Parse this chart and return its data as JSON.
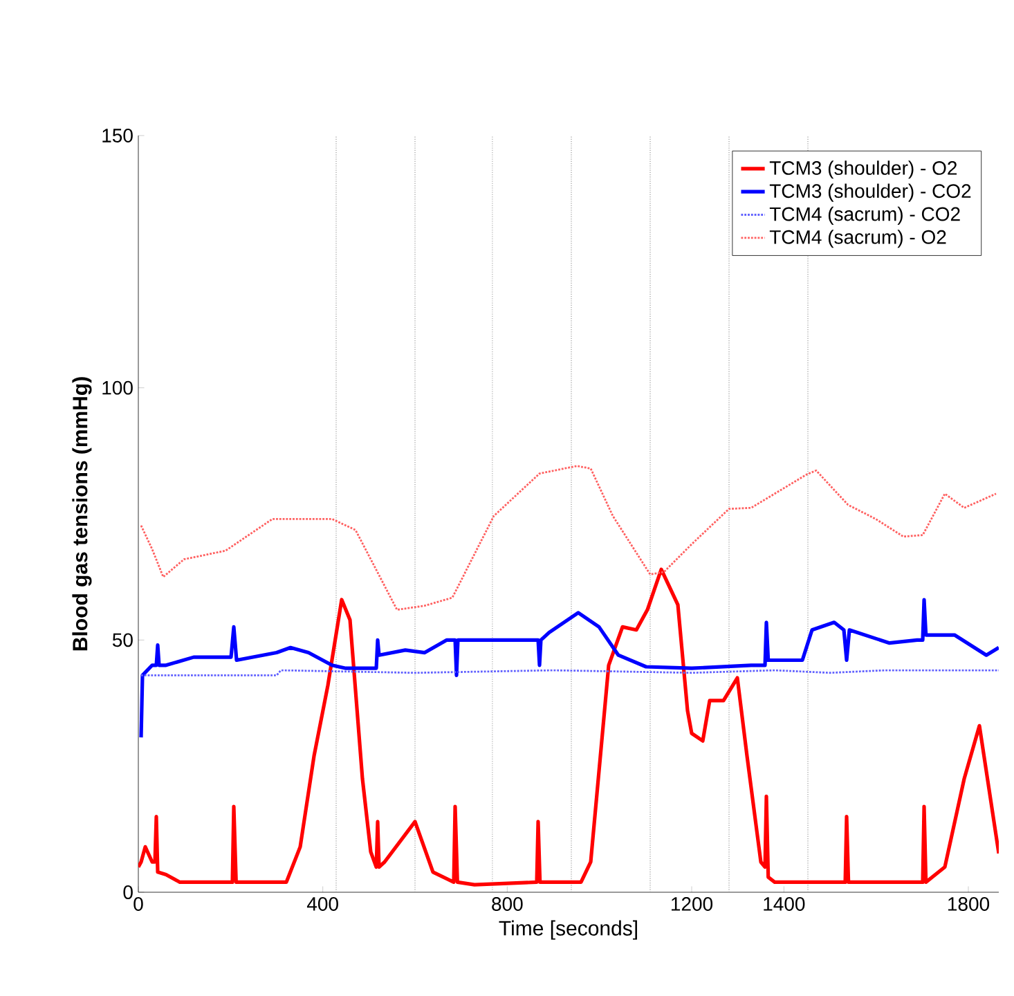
{
  "chart_data": {
    "type": "line",
    "xlabel": "Time [seconds]",
    "ylabel": "Blood gas tensions (mmHg)",
    "xlim": [
      0,
      1866
    ],
    "ylim": [
      0,
      150
    ],
    "xticks": [
      0,
      400,
      800,
      1200,
      1400,
      1800
    ],
    "yticks": [
      0,
      50,
      100,
      150
    ],
    "legend": "top right",
    "grid": false,
    "series": [
      {
        "name": "TCM3 (shoulder) - O2",
        "color": "#ff0000",
        "line_style": "solid",
        "x": [
          0,
          6,
          15,
          30,
          36,
          39,
          42,
          60,
          90,
          204,
          207,
          212,
          321,
          351,
          381,
          411,
          441,
          459,
          486,
          504,
          516,
          519,
          522,
          534,
          600,
          639,
          684,
          687,
          692,
          729,
          864,
          867,
          871,
          960,
          981,
          1020,
          1050,
          1080,
          1104,
          1134,
          1170,
          1191,
          1200,
          1224,
          1239,
          1269,
          1299,
          1320,
          1350,
          1359,
          1362,
          1366,
          1380,
          1533,
          1536,
          1540,
          1701,
          1704,
          1708,
          1749,
          1791,
          1824,
          1866
        ],
        "values": [
          5,
          6,
          9,
          6,
          6,
          15,
          4,
          3.5,
          2,
          2,
          17,
          2,
          2,
          9,
          27,
          41,
          58,
          54,
          22.5,
          8,
          5,
          14,
          5,
          6,
          14,
          4,
          2,
          17,
          2,
          1.5,
          2,
          14,
          2,
          2,
          6,
          45,
          52.6,
          52,
          56,
          64,
          57,
          36,
          31.5,
          30,
          38,
          38,
          42.5,
          27,
          6,
          5,
          19,
          3,
          2,
          2,
          15,
          2,
          2,
          17,
          2,
          5,
          22.5,
          33,
          7.7
        ]
      },
      {
        "name": "TCM3 (shoulder) - CO2",
        "color": "#0000ff",
        "line_style": "solid",
        "x": [
          6,
          9,
          30,
          39,
          42,
          45,
          60,
          120,
          201,
          207,
          213,
          300,
          330,
          369,
          420,
          450,
          501,
          516,
          519,
          522,
          579,
          621,
          669,
          687,
          690,
          693,
          771,
          819,
          867,
          870,
          873,
          891,
          954,
          999,
          1041,
          1101,
          1200,
          1329,
          1359,
          1362,
          1366,
          1440,
          1461,
          1509,
          1530,
          1536,
          1542,
          1629,
          1689,
          1701,
          1704,
          1708,
          1770,
          1839,
          1866
        ],
        "values": [
          30.7,
          43,
          45,
          45,
          49,
          45,
          45,
          46.6,
          46.6,
          52.6,
          46,
          47.5,
          48.5,
          47.5,
          45,
          44.4,
          44.4,
          44.4,
          50,
          47,
          48,
          47.5,
          50,
          50,
          43,
          50,
          50,
          50,
          50,
          45,
          50,
          51.5,
          55.4,
          52.6,
          47,
          44.7,
          44.4,
          45,
          45,
          53.5,
          46,
          46,
          52,
          53.5,
          52,
          46,
          52,
          49.4,
          50,
          50,
          58,
          51,
          51,
          47,
          48.5
        ]
      },
      {
        "name": "TCM4 (sacrum) - CO2",
        "color": "#6060ff",
        "line_style": "dotted",
        "x": [
          6,
          300,
          309,
          600,
          900,
          1200,
          1380,
          1500,
          1620,
          1866
        ],
        "values": [
          43,
          43,
          44,
          43.5,
          44,
          43.5,
          44,
          43.5,
          44,
          44
        ]
      },
      {
        "name": "TCM4 (sacrum) - O2",
        "color": "#ff6060",
        "line_style": "dotted",
        "x": [
          6,
          30,
          54,
          99,
          189,
          291,
          420,
          471,
          561,
          621,
          681,
          771,
          870,
          951,
          981,
          1029,
          1110,
          1140,
          1200,
          1281,
          1329,
          1449,
          1470,
          1539,
          1599,
          1659,
          1701,
          1749,
          1791,
          1860
        ],
        "values": [
          72.7,
          68,
          62.5,
          66,
          67.7,
          74,
          74,
          71.8,
          56,
          56.8,
          58.4,
          74.6,
          83,
          84.5,
          84,
          74.6,
          63,
          63.5,
          69,
          76,
          76.2,
          82.8,
          83.6,
          76.8,
          74,
          70.5,
          70.8,
          79,
          76.2,
          79
        ]
      }
    ],
    "ref_lines": [
      {
        "axis": "x",
        "value": 429,
        "color": "#999999",
        "line_style": "dotted"
      },
      {
        "axis": "x",
        "value": 600,
        "color": "#999999",
        "line_style": "dotted"
      },
      {
        "axis": "x",
        "value": 768,
        "color": "#999999",
        "line_style": "dotted"
      },
      {
        "axis": "x",
        "value": 939,
        "color": "#999999",
        "line_style": "dotted"
      },
      {
        "axis": "x",
        "value": 1110,
        "color": "#999999",
        "line_style": "dotted"
      },
      {
        "axis": "x",
        "value": 1281,
        "color": "#999999",
        "line_style": "dotted"
      },
      {
        "axis": "x",
        "value": 1452,
        "color": "#999999",
        "line_style": "dotted"
      }
    ]
  }
}
